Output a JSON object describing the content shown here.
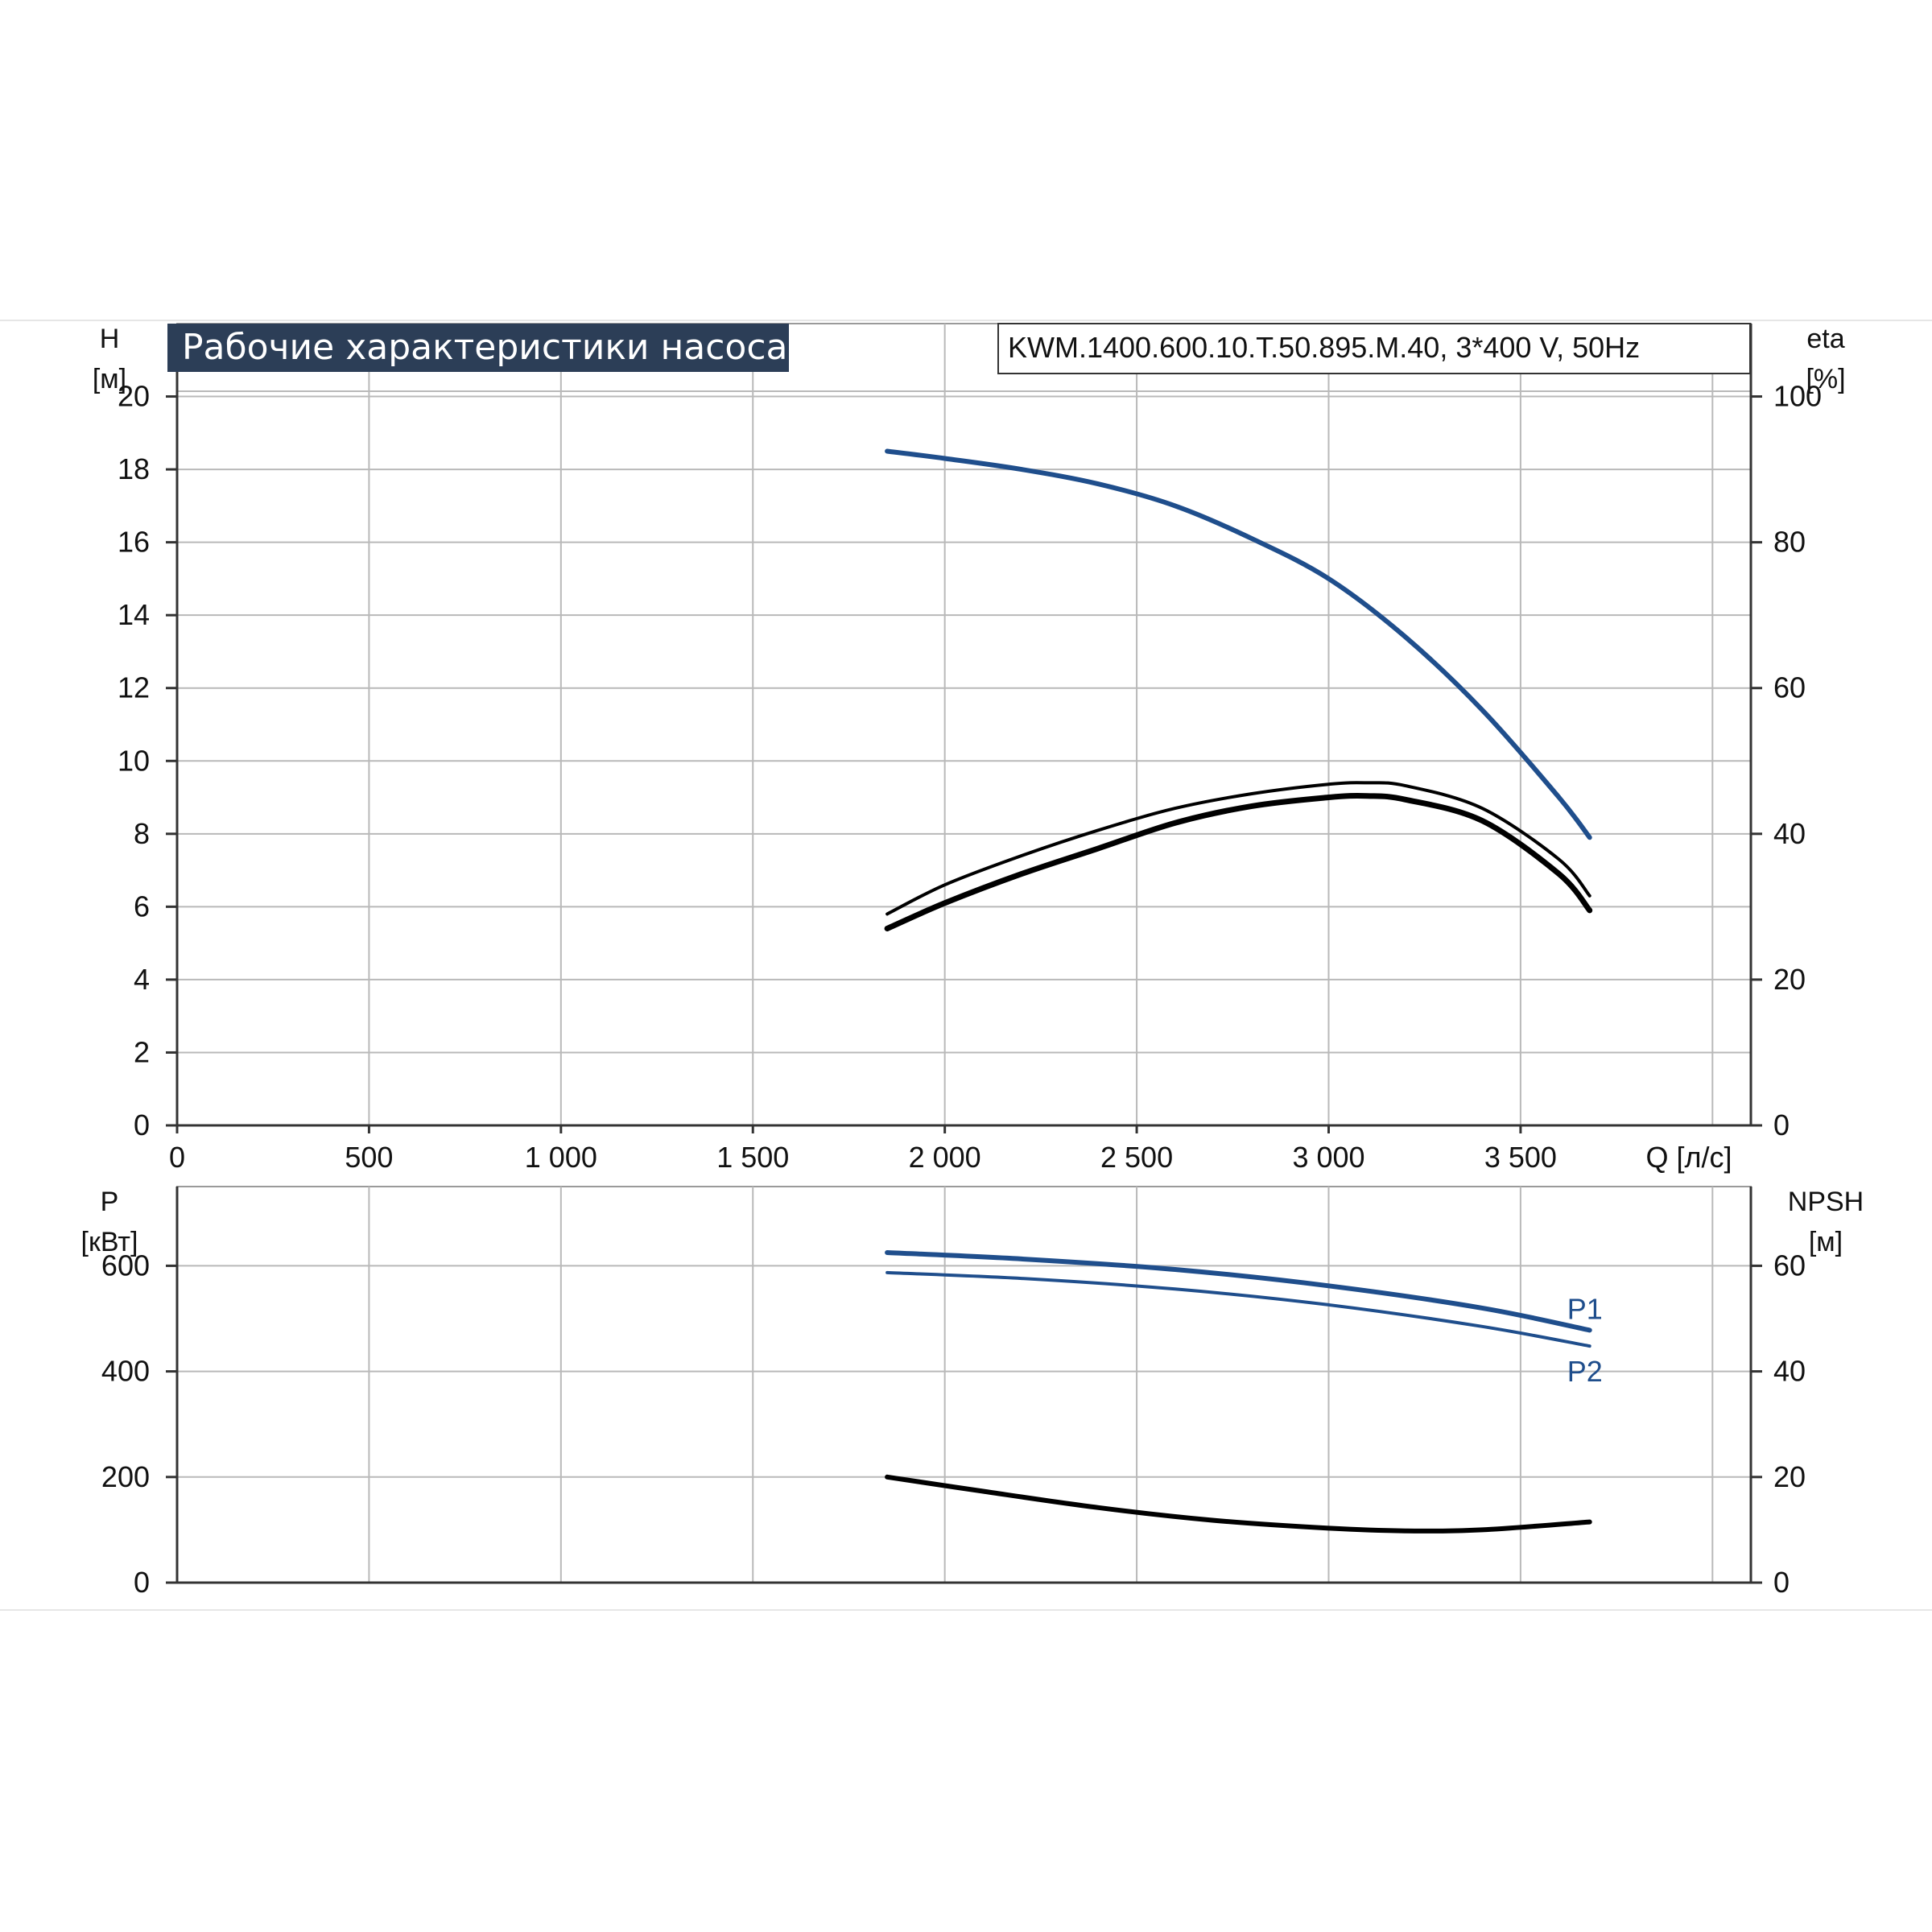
{
  "title": "Рабочие характеристики насоса",
  "model": "KWM.1400.600.10.T.50.895.M.40, 3*400 V, 50Hz",
  "colors": {
    "blue": "#1f4e8c",
    "black": "#000000",
    "grid": "#b9b9b9",
    "title_bg": "#2c3e57"
  },
  "chart_data": [
    {
      "type": "line",
      "y_left_label": [
        "H",
        "[м]"
      ],
      "y_right_label": [
        "eta",
        "[%]"
      ],
      "x_unit_label": "Q [л/с]",
      "xlim": [
        0,
        4100
      ],
      "ylim_left": [
        0,
        22
      ],
      "ylim_right": [
        0,
        110
      ],
      "x_ticks": [
        0,
        500,
        1000,
        1500,
        2000,
        2500,
        3000,
        3500
      ],
      "x_tick_labels": [
        "0",
        "500",
        "1 000",
        "1 500",
        "2 000",
        "2 500",
        "3 000",
        "3 500"
      ],
      "y_left_ticks": [
        0,
        2,
        4,
        6,
        8,
        10,
        12,
        14,
        16,
        18,
        20
      ],
      "y_right_ticks": [
        0,
        20,
        40,
        60,
        80,
        100
      ],
      "grid": true,
      "series": [
        {
          "axis": "left",
          "color": "blue",
          "width": 6,
          "x": [
            1850,
            2000,
            2200,
            2400,
            2600,
            2800,
            3000,
            3200,
            3400,
            3600,
            3680
          ],
          "y": [
            18.5,
            18.3,
            18.0,
            17.6,
            17.0,
            16.1,
            15.0,
            13.4,
            11.4,
            9.0,
            7.9
          ]
        },
        {
          "axis": "right",
          "color": "black",
          "width": 4,
          "x": [
            1850,
            2000,
            2200,
            2400,
            2600,
            2800,
            3000,
            3100,
            3200,
            3400,
            3600,
            3680
          ],
          "y": [
            29,
            33,
            37,
            40.5,
            43.5,
            45.5,
            46.8,
            47,
            46.6,
            43.5,
            36.5,
            31.5
          ]
        },
        {
          "axis": "right",
          "color": "black",
          "width": 7,
          "x": [
            1850,
            2000,
            2200,
            2400,
            2600,
            2800,
            3000,
            3100,
            3200,
            3400,
            3600,
            3680
          ],
          "y": [
            27,
            30.5,
            34.5,
            38,
            41.5,
            43.8,
            45,
            45.2,
            44.7,
            41.8,
            34.5,
            29.5
          ]
        }
      ]
    },
    {
      "type": "line",
      "y_left_label": [
        "P",
        "[кВт]"
      ],
      "y_right_label": [
        "NPSH",
        "[м]"
      ],
      "xlim": [
        0,
        4100
      ],
      "ylim_left": [
        0,
        750
      ],
      "ylim_right": [
        0,
        75
      ],
      "y_left_ticks": [
        0,
        200,
        400,
        600
      ],
      "y_right_ticks": [
        0,
        20,
        40,
        60
      ],
      "grid": true,
      "series": [
        {
          "name": "P1",
          "axis": "left",
          "color": "blue",
          "width": 6,
          "x": [
            1850,
            2200,
            2600,
            3000,
            3400,
            3680
          ],
          "y": [
            625,
            613,
            593,
            562,
            520,
            478
          ]
        },
        {
          "name": "P2",
          "axis": "left",
          "color": "blue",
          "width": 4,
          "x": [
            1850,
            2200,
            2600,
            3000,
            3400,
            3680
          ],
          "y": [
            587,
            576,
            556,
            526,
            485,
            448
          ]
        },
        {
          "axis": "right",
          "color": "black",
          "width": 6,
          "x": [
            1850,
            2100,
            2400,
            2700,
            3000,
            3200,
            3400,
            3680
          ],
          "y": [
            20,
            17.3,
            14.2,
            11.8,
            10.3,
            9.8,
            10.0,
            11.5
          ]
        }
      ]
    }
  ]
}
